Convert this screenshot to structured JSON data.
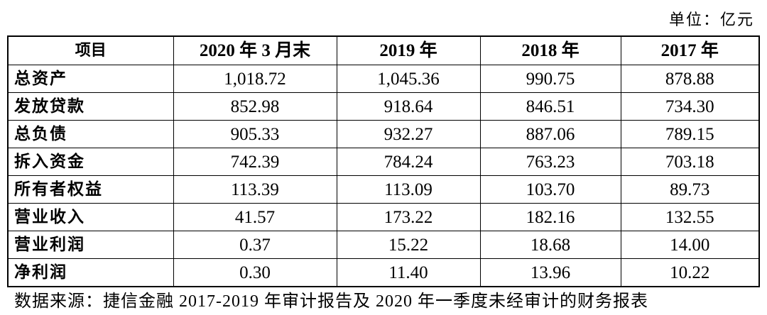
{
  "unit": "单位：亿元",
  "table": {
    "header": [
      "项目",
      "2020 年 3 月末",
      "2019 年",
      "2018 年",
      "2017 年"
    ],
    "rows": [
      [
        "总资产",
        "1,018.72",
        "1,045.36",
        "990.75",
        "878.88"
      ],
      [
        "发放贷款",
        "852.98",
        "918.64",
        "846.51",
        "734.30"
      ],
      [
        "总负债",
        "905.33",
        "932.27",
        "887.06",
        "789.15"
      ],
      [
        "拆入资金",
        "742.39",
        "784.24",
        "763.23",
        "703.18"
      ],
      [
        "所有者权益",
        "113.39",
        "113.09",
        "103.70",
        "89.73"
      ],
      [
        "营业收入",
        "41.57",
        "173.22",
        "182.16",
        "132.55"
      ],
      [
        "营业利润",
        "0.37",
        "15.22",
        "18.68",
        "14.00"
      ],
      [
        "净利润",
        "0.30",
        "11.40",
        "13.96",
        "10.22"
      ]
    ]
  },
  "source": "数据来源：捷信金融 2017-2019 年审计报告及 2020 年一季度未经审计的财务报表"
}
